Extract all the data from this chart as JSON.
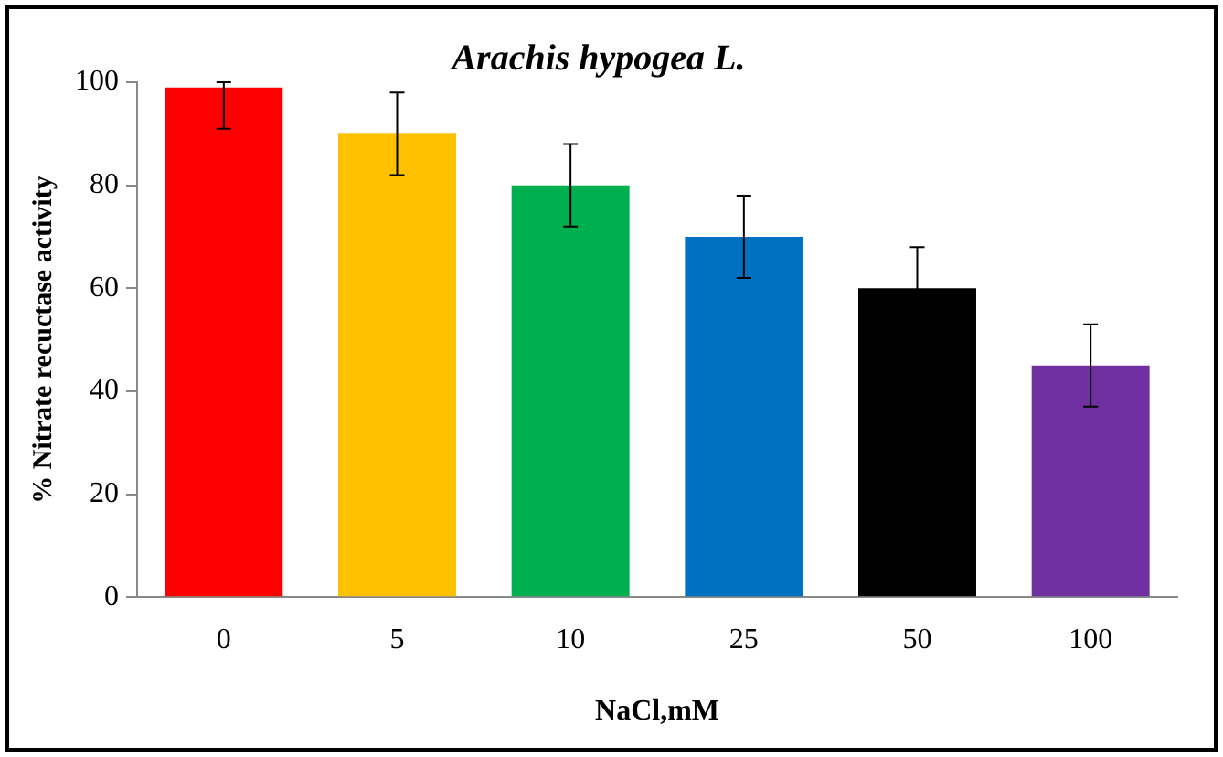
{
  "chart_data": {
    "type": "bar",
    "title": "Arachis hypogea L.",
    "xlabel": "NaCl,mM",
    "ylabel": "% Nitrate recuctase activity",
    "categories": [
      "0",
      "5",
      "10",
      "25",
      "50",
      "100"
    ],
    "values": [
      99,
      90,
      80,
      70,
      60,
      45
    ],
    "colors": [
      "#ff0000",
      "#ffc000",
      "#00b050",
      "#0070c0",
      "#000000",
      "#7030a0"
    ],
    "errors": [
      [
        91,
        100
      ],
      8,
      8,
      8,
      8,
      8
    ],
    "ylim": [
      0,
      100
    ],
    "yticks": [
      0,
      20,
      40,
      60,
      80,
      100
    ],
    "grid": false,
    "legend": false
  }
}
